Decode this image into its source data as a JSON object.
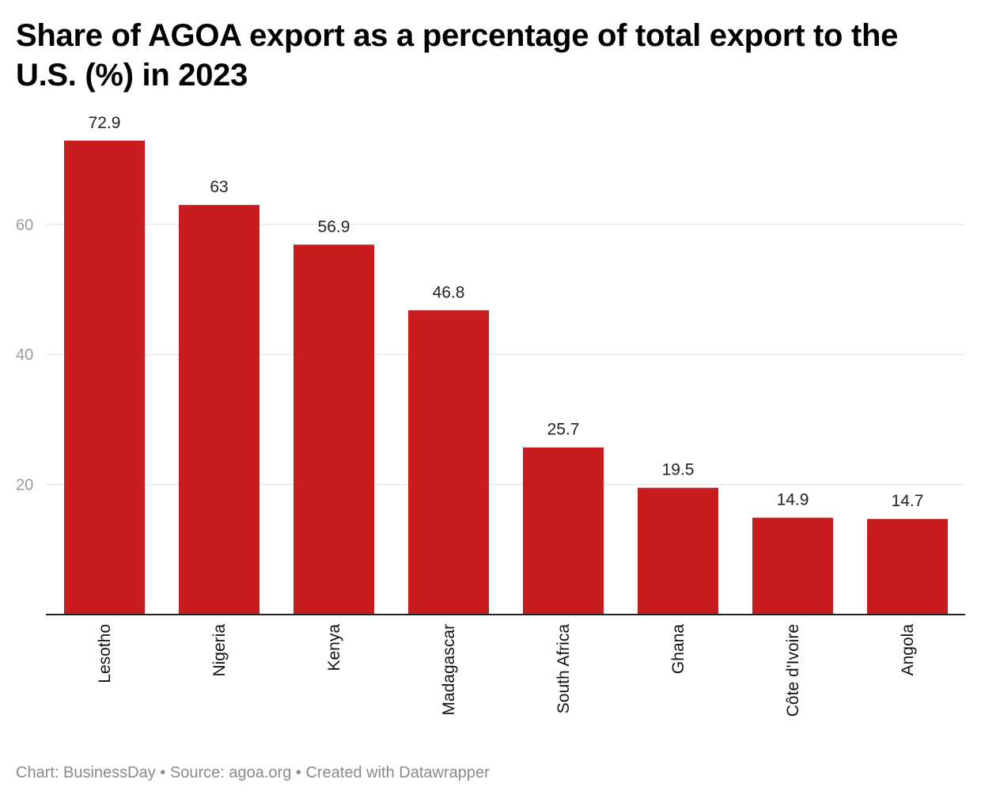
{
  "title": "Share of AGOA export as a percentage of total export to the U.S. (%) in 2023",
  "footer": {
    "credit": "Chart: BusinessDay",
    "separator": " • ",
    "source": "Source: agoa.org",
    "tool": "Created with Datawrapper"
  },
  "colors": {
    "bar": "#c91c1f",
    "gridline": "#e0e0e0",
    "axis_line": "#222222",
    "tick_label": "#9a9a9a",
    "data_label": "#222222",
    "category_label": "#111111"
  },
  "chart_data": {
    "type": "bar",
    "title": "Share of AGOA export as a percentage of total export to the U.S. (%) in 2023",
    "categories": [
      "Lesotho",
      "Nigeria",
      "Kenya",
      "Madagascar",
      "South Africa",
      "Ghana",
      "Côte d'Ivoire",
      "Angola"
    ],
    "values": [
      72.9,
      63,
      56.9,
      46.8,
      25.7,
      19.5,
      14.9,
      14.7
    ],
    "data_labels": [
      "72.9",
      "63",
      "56.9",
      "46.8",
      "25.7",
      "19.5",
      "14.9",
      "14.7"
    ],
    "y_ticks": [
      20,
      40,
      60
    ],
    "ylim": [
      0,
      80
    ],
    "category_label_orientation": "vertical",
    "grid": true,
    "legend": "none"
  }
}
